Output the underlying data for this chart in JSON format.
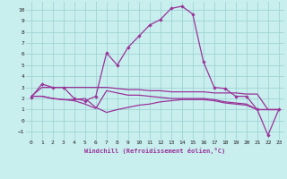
{
  "title": "",
  "xlabel": "Windchill (Refroidissement éolien,°C)",
  "bg_color": "#c8eeee",
  "grid_color": "#a0d4d4",
  "line_color": "#993399",
  "xlim": [
    -0.5,
    23.5
  ],
  "ylim": [
    -1.7,
    10.7
  ],
  "xticks": [
    0,
    1,
    2,
    3,
    4,
    5,
    6,
    7,
    8,
    9,
    10,
    11,
    12,
    13,
    14,
    15,
    16,
    17,
    18,
    19,
    20,
    21,
    22,
    23
  ],
  "yticks": [
    -1,
    0,
    1,
    2,
    3,
    4,
    5,
    6,
    7,
    8,
    9,
    10
  ],
  "line1_x": [
    0,
    1,
    2,
    3,
    4,
    5,
    6,
    7,
    8,
    9,
    10,
    11,
    12,
    13,
    14,
    15,
    16,
    17,
    18,
    19,
    20,
    21,
    22,
    23
  ],
  "line1_y": [
    2.1,
    3.3,
    3.0,
    3.0,
    2.0,
    1.8,
    2.2,
    6.1,
    5.0,
    6.6,
    7.6,
    8.6,
    9.1,
    10.1,
    10.3,
    9.6,
    5.3,
    3.0,
    2.9,
    2.2,
    2.2,
    1.0,
    -1.3,
    1.0
  ],
  "line2_x": [
    0,
    1,
    2,
    3,
    4,
    5,
    6,
    7,
    8,
    9,
    10,
    11,
    12,
    13,
    14,
    15,
    16,
    17,
    18,
    19,
    20,
    21,
    22,
    23
  ],
  "line2_y": [
    2.2,
    3.0,
    3.0,
    3.0,
    3.0,
    3.0,
    3.0,
    3.0,
    2.9,
    2.8,
    2.8,
    2.7,
    2.7,
    2.6,
    2.6,
    2.6,
    2.6,
    2.5,
    2.5,
    2.5,
    2.4,
    2.4,
    1.0,
    1.0
  ],
  "line3_x": [
    0,
    1,
    2,
    3,
    4,
    5,
    6,
    7,
    8,
    9,
    10,
    11,
    12,
    13,
    14,
    15,
    16,
    17,
    18,
    19,
    20,
    21,
    22,
    23
  ],
  "line3_y": [
    2.2,
    2.2,
    2.0,
    1.9,
    1.8,
    1.5,
    1.1,
    2.7,
    2.5,
    2.3,
    2.3,
    2.2,
    2.1,
    2.0,
    2.0,
    2.0,
    2.0,
    1.9,
    1.7,
    1.6,
    1.5,
    1.0,
    1.0,
    1.0
  ],
  "line4_x": [
    0,
    1,
    2,
    3,
    4,
    5,
    6,
    7,
    8,
    9,
    10,
    11,
    12,
    13,
    14,
    15,
    16,
    17,
    18,
    19,
    20,
    21,
    22,
    23
  ],
  "line4_y": [
    2.2,
    2.2,
    2.0,
    1.9,
    1.9,
    2.0,
    1.2,
    0.75,
    1.0,
    1.2,
    1.4,
    1.5,
    1.7,
    1.8,
    1.9,
    1.9,
    1.9,
    1.8,
    1.6,
    1.5,
    1.4,
    1.0,
    1.0,
    1.0
  ]
}
